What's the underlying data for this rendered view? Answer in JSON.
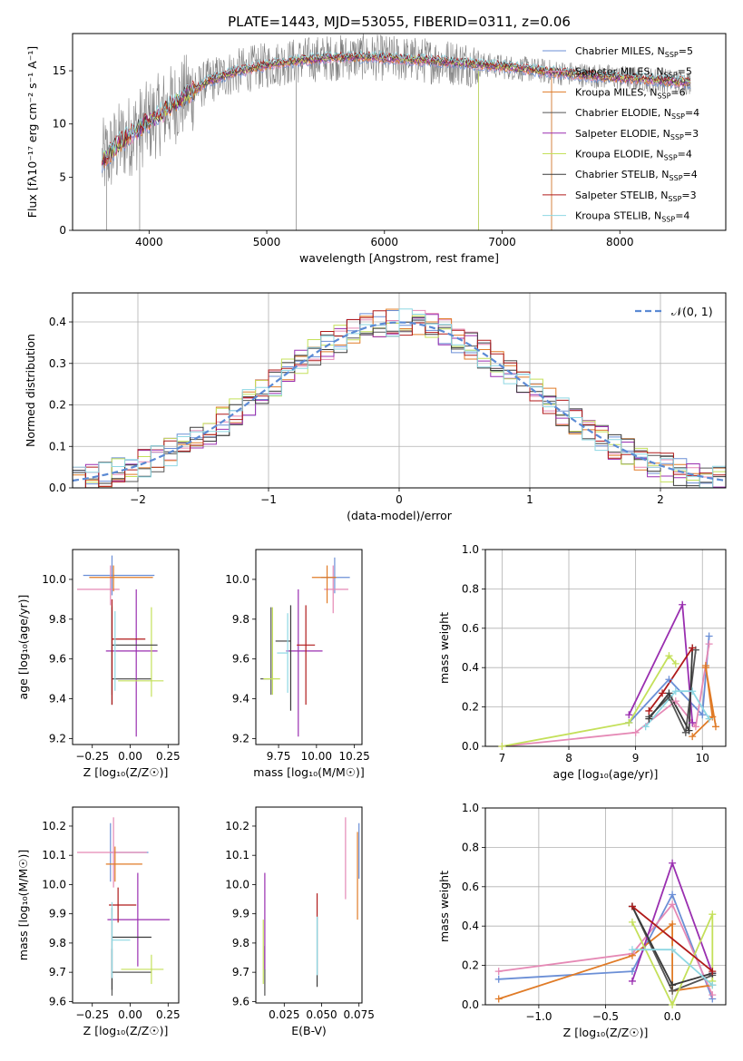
{
  "title": "PLATE=1443, MJD=53055, FIBERID=0311, z=0.06",
  "colors": {
    "data": "#808080",
    "Chabrier MILES": "#6b8fd6",
    "Salpeter MILES": "#e589b5",
    "Kroupa MILES": "#e07b27",
    "Chabrier ELODIE": "#555555",
    "Salpeter ELODIE": "#9a2fb0",
    "Kroupa ELODIE": "#c4e05a",
    "Chabrier STELIB": "#3a3a3a",
    "Salpeter STELIB": "#b01a1a",
    "Kroupa STELIB": "#8ed7e3",
    "normal": "#5b8ad4"
  },
  "chart_data": [
    {
      "id": "spectrum",
      "type": "line",
      "xlabel": "wavelength [Angstrom, rest frame]",
      "ylabel": "Flux [fλ10⁻¹⁷ erg cm⁻² s⁻¹ A⁻¹]",
      "xlim": [
        3350,
        8900
      ],
      "ylim": [
        0,
        18.5
      ],
      "xticks": [
        4000,
        5000,
        6000,
        7000,
        8000
      ],
      "yticks": [
        0,
        5,
        10,
        15
      ],
      "legend_position": "top-right",
      "legend": [
        {
          "name": "Chabrier MILES",
          "nssp": "5"
        },
        {
          "name": "Salpeter MILES",
          "nssp": "5"
        },
        {
          "name": "Kroupa MILES",
          "nssp": "6"
        },
        {
          "name": "Chabrier ELODIE",
          "nssp": "4"
        },
        {
          "name": "Salpeter ELODIE",
          "nssp": "3"
        },
        {
          "name": "Kroupa ELODIE",
          "nssp": "4"
        },
        {
          "name": "Chabrier STELIB",
          "nssp": "4"
        },
        {
          "name": "Salpeter STELIB",
          "nssp": "3"
        },
        {
          "name": "Kroupa STELIB",
          "nssp": "4"
        }
      ],
      "continuum": {
        "x": [
          3600,
          3750,
          3900,
          4000,
          4100,
          4300,
          4500,
          4700,
          4900,
          5100,
          5300,
          5500,
          5800,
          6000,
          6300,
          6600,
          7000,
          7400,
          7800,
          8200,
          8600
        ],
        "y": [
          6.5,
          8.2,
          9.5,
          10.2,
          11.0,
          12.6,
          14.0,
          14.8,
          15.3,
          15.7,
          16.0,
          16.2,
          16.3,
          16.2,
          16.0,
          15.8,
          15.4,
          14.9,
          14.5,
          14.2,
          13.9
        ]
      }
    },
    {
      "id": "residuals",
      "type": "histogram",
      "xlabel": "(data-model)/error",
      "ylabel": "Normed distribution",
      "xlim": [
        -2.5,
        2.5
      ],
      "ylim": [
        0,
        0.47
      ],
      "xticks": [
        -2,
        -1,
        0,
        1,
        2
      ],
      "yticks": [
        0.0,
        0.1,
        0.2,
        0.3,
        0.4
      ],
      "legend_position": "top-right",
      "legend_label": "𝒩(0, 1)",
      "bin_width": 0.1
    },
    {
      "id": "age-vs-Z",
      "type": "errorbar",
      "xlabel": "Z [log₁₀(Z/Z☉)]",
      "ylabel": "age  [log₁₀(age/yr)]",
      "xlim": [
        -0.38,
        0.32
      ],
      "ylim": [
        9.17,
        10.15
      ],
      "xticks": [
        -0.25,
        0.0,
        0.25
      ],
      "xtick_labels": [
        "−0.25",
        "0.00",
        "0.25"
      ],
      "yticks": [
        9.2,
        9.4,
        9.6,
        9.8,
        10.0
      ],
      "points": [
        {
          "model": "Chabrier MILES",
          "x": -0.12,
          "xerr": [
            0.19,
            0.28
          ],
          "y": 10.02,
          "yerr": [
            0.1,
            0.1
          ]
        },
        {
          "model": "Salpeter MILES",
          "x": -0.13,
          "xerr": [
            0.22,
            0.06
          ],
          "y": 9.95,
          "yerr": [
            0.08,
            0.12
          ]
        },
        {
          "model": "Kroupa MILES",
          "x": -0.11,
          "xerr": [
            0.16,
            0.26
          ],
          "y": 10.01,
          "yerr": [
            0.07,
            0.06
          ]
        },
        {
          "model": "Chabrier ELODIE",
          "x": -0.12,
          "xerr": [
            0.0,
            0.26
          ],
          "y": 9.5,
          "yerr": [
            0.08,
            0.36
          ]
        },
        {
          "model": "Salpeter ELODIE",
          "x": 0.04,
          "xerr": [
            0.2,
            0.14
          ],
          "y": 9.64,
          "yerr": [
            0.43,
            0.31
          ]
        },
        {
          "model": "Kroupa ELODIE",
          "x": 0.14,
          "xerr": [
            0.22,
            0.08
          ],
          "y": 9.49,
          "yerr": [
            0.08,
            0.37
          ]
        },
        {
          "model": "Chabrier STELIB",
          "x": -0.12,
          "xerr": [
            0.0,
            0.3
          ],
          "y": 9.67,
          "yerr": [
            0.3,
            0.2
          ]
        },
        {
          "model": "Salpeter STELIB",
          "x": -0.12,
          "xerr": [
            0.0,
            0.22
          ],
          "y": 9.7,
          "yerr": [
            0.33,
            0.2
          ]
        },
        {
          "model": "Kroupa STELIB",
          "x": -0.1,
          "xerr": [
            0.0,
            0.0
          ],
          "y": 9.66,
          "yerr": [
            0.22,
            0.18
          ]
        }
      ]
    },
    {
      "id": "age-vs-mass",
      "type": "errorbar",
      "xlabel": "mass [log₁₀(M/M☉)]",
      "xlim": [
        9.6,
        10.3
      ],
      "ylim": [
        9.17,
        10.15
      ],
      "xticks": [
        9.75,
        10.0,
        10.25
      ],
      "xtick_labels": [
        "9.75",
        "10.00",
        "10.25"
      ],
      "yticks": [
        9.2,
        9.4,
        9.6,
        9.8,
        10.0
      ],
      "points": [
        {
          "model": "Chabrier MILES",
          "x": 10.12,
          "xerr": [
            0.09,
            0.1
          ],
          "y": 10.01,
          "yerr": [
            0.08,
            0.1
          ]
        },
        {
          "model": "Salpeter MILES",
          "x": 10.11,
          "xerr": [
            0.06,
            0.1
          ],
          "y": 9.95,
          "yerr": [
            0.12,
            0.12
          ]
        },
        {
          "model": "Kroupa MILES",
          "x": 10.07,
          "xerr": [
            0.1,
            0.06
          ],
          "y": 10.01,
          "yerr": [
            0.13,
            0.06
          ]
        },
        {
          "model": "Chabrier ELODIE",
          "x": 9.7,
          "xerr": [
            0.07,
            0.0
          ],
          "y": 9.5,
          "yerr": [
            0.08,
            0.36
          ]
        },
        {
          "model": "Salpeter ELODIE",
          "x": 9.88,
          "xerr": [
            0.08,
            0.16
          ],
          "y": 9.64,
          "yerr": [
            0.43,
            0.31
          ]
        },
        {
          "model": "Kroupa ELODIE",
          "x": 9.71,
          "xerr": [
            0.06,
            0.05
          ],
          "y": 9.5,
          "yerr": [
            0.08,
            0.36
          ]
        },
        {
          "model": "Chabrier STELIB",
          "x": 9.83,
          "xerr": [
            0.1,
            0.0
          ],
          "y": 9.69,
          "yerr": [
            0.35,
            0.18
          ]
        },
        {
          "model": "Salpeter STELIB",
          "x": 9.93,
          "xerr": [
            0.06,
            0.06
          ],
          "y": 9.67,
          "yerr": [
            0.3,
            0.2
          ]
        },
        {
          "model": "Kroupa STELIB",
          "x": 9.81,
          "xerr": [
            0.07,
            0.0
          ],
          "y": 9.63,
          "yerr": [
            0.2,
            0.2
          ]
        }
      ]
    },
    {
      "id": "mass-weight-vs-age",
      "type": "line",
      "xlabel": "age  [log₁₀(age/yr)]",
      "ylabel": "mass weight",
      "xlim": [
        6.75,
        10.35
      ],
      "ylim": [
        0,
        1.0
      ],
      "xticks": [
        7,
        8,
        9,
        10
      ],
      "yticks": [
        0.0,
        0.2,
        0.4,
        0.6,
        0.8,
        1.0
      ],
      "series": [
        {
          "model": "Chabrier MILES",
          "x": [
            8.9,
            9.5,
            10.0,
            10.1
          ],
          "y": [
            0.12,
            0.34,
            0.16,
            0.56
          ]
        },
        {
          "model": "Salpeter MILES",
          "x": [
            7.0,
            9.0,
            9.6,
            9.9,
            10.1
          ],
          "y": [
            0.0,
            0.07,
            0.23,
            0.1,
            0.52
          ]
        },
        {
          "model": "Kroupa MILES",
          "x": [
            9.85,
            10.15,
            10.05,
            10.05,
            10.2
          ],
          "y": [
            0.05,
            0.15,
            0.41,
            0.4,
            0.1
          ]
        },
        {
          "model": "Chabrier ELODIE",
          "x": [
            9.2,
            9.5,
            9.75,
            9.9
          ],
          "y": [
            0.15,
            0.25,
            0.07,
            0.49
          ]
        },
        {
          "model": "Salpeter ELODIE",
          "x": [
            8.9,
            9.7,
            9.85
          ],
          "y": [
            0.16,
            0.72,
            0.12
          ]
        },
        {
          "model": "Kroupa ELODIE",
          "x": [
            7.0,
            8.9,
            9.5,
            9.6
          ],
          "y": [
            0.0,
            0.12,
            0.46,
            0.42
          ]
        },
        {
          "model": "Chabrier STELIB",
          "x": [
            9.2,
            9.5,
            9.8,
            9.85
          ],
          "y": [
            0.14,
            0.27,
            0.08,
            0.5
          ]
        },
        {
          "model": "Salpeter STELIB",
          "x": [
            9.2,
            9.4,
            9.85
          ],
          "y": [
            0.18,
            0.27,
            0.5
          ]
        },
        {
          "model": "Kroupa STELIB",
          "x": [
            9.15,
            9.6,
            9.85,
            10.1
          ],
          "y": [
            0.1,
            0.28,
            0.28,
            0.14
          ]
        }
      ]
    },
    {
      "id": "mass-vs-Z",
      "type": "errorbar",
      "xlabel": "Z [log₁₀(Z/Z☉)]",
      "ylabel": "mass [log₁₀(M/M☉)]",
      "xlim": [
        -0.38,
        0.32
      ],
      "ylim": [
        9.595,
        10.265
      ],
      "xticks": [
        -0.25,
        0.0,
        0.25
      ],
      "xtick_labels": [
        "−0.25",
        "0.00",
        "0.25"
      ],
      "yticks": [
        9.6,
        9.7,
        9.8,
        9.9,
        10.0,
        10.1,
        10.2
      ],
      "points": [
        {
          "model": "Chabrier MILES",
          "x": -0.13,
          "xerr": [
            0.0,
            0.25
          ],
          "y": 10.11,
          "yerr": [
            0.1,
            0.1
          ]
        },
        {
          "model": "Salpeter MILES",
          "x": -0.11,
          "xerr": [
            0.24,
            0.22
          ],
          "y": 10.11,
          "yerr": [
            0.12,
            0.12
          ]
        },
        {
          "model": "Kroupa MILES",
          "x": -0.1,
          "xerr": [
            0.06,
            0.18
          ],
          "y": 10.07,
          "yerr": [
            0.06,
            0.06
          ]
        },
        {
          "model": "Chabrier ELODIE",
          "x": -0.12,
          "xerr": [
            0.0,
            0.26
          ],
          "y": 9.7,
          "yerr": [
            0.08,
            0.08
          ]
        },
        {
          "model": "Salpeter ELODIE",
          "x": 0.05,
          "xerr": [
            0.2,
            0.21
          ],
          "y": 9.88,
          "yerr": [
            0.16,
            0.16
          ]
        },
        {
          "model": "Kroupa ELODIE",
          "x": 0.14,
          "xerr": [
            0.2,
            0.08
          ],
          "y": 9.71,
          "yerr": [
            0.05,
            0.05
          ]
        },
        {
          "model": "Chabrier STELIB",
          "x": -0.12,
          "xerr": [
            0.0,
            0.26
          ],
          "y": 9.82,
          "yerr": [
            0.18,
            0.1
          ]
        },
        {
          "model": "Salpeter STELIB",
          "x": -0.08,
          "xerr": [
            0.06,
            0.12
          ],
          "y": 9.93,
          "yerr": [
            0.06,
            0.06
          ]
        },
        {
          "model": "Kroupa STELIB",
          "x": -0.12,
          "xerr": [
            0.0,
            0.12
          ],
          "y": 9.81,
          "yerr": [
            0.13,
            0.13
          ]
        }
      ]
    },
    {
      "id": "mass-vs-ebv",
      "type": "errorbar",
      "xlabel": "E(B-V)",
      "xlim": [
        0.006,
        0.077
      ],
      "ylim": [
        9.595,
        10.265
      ],
      "xticks": [
        0.025,
        0.05,
        0.075
      ],
      "xtick_labels": [
        "0.025",
        "0.050",
        "0.075"
      ],
      "yticks": [
        9.6,
        9.7,
        9.8,
        9.9,
        10.0,
        10.1,
        10.2
      ],
      "points": [
        {
          "model": "Salpeter MILES",
          "x": 0.066,
          "xerr": [
            0,
            0
          ],
          "y": 10.11,
          "yerr": [
            0.16,
            0.12
          ]
        },
        {
          "model": "Kroupa MILES",
          "x": 0.074,
          "xerr": [
            0,
            0
          ],
          "y": 10.07,
          "yerr": [
            0.19,
            0.11
          ]
        },
        {
          "model": "Chabrier MILES",
          "x": 0.075,
          "xerr": [
            0,
            0
          ],
          "y": 10.12,
          "yerr": [
            0.1,
            0.09
          ]
        },
        {
          "model": "Chabrier ELODIE",
          "x": 0.012,
          "xerr": [
            0,
            0
          ],
          "y": 9.7,
          "yerr": [
            0.08,
            0.09
          ]
        },
        {
          "model": "Salpeter ELODIE",
          "x": 0.012,
          "xerr": [
            0,
            0
          ],
          "y": 9.88,
          "yerr": [
            0.17,
            0.16
          ]
        },
        {
          "model": "Kroupa ELODIE",
          "x": 0.011,
          "xerr": [
            0,
            0
          ],
          "y": 9.72,
          "yerr": [
            0.06,
            0.16
          ]
        },
        {
          "model": "Chabrier STELIB",
          "x": 0.047,
          "xerr": [
            0,
            0
          ],
          "y": 9.8,
          "yerr": [
            0.15,
            0.09
          ]
        },
        {
          "model": "Salpeter STELIB",
          "x": 0.047,
          "xerr": [
            0,
            0
          ],
          "y": 9.93,
          "yerr": [
            0.04,
            0.04
          ]
        },
        {
          "model": "Kroupa STELIB",
          "x": 0.047,
          "xerr": [
            0,
            0
          ],
          "y": 9.81,
          "yerr": [
            0.12,
            0.08
          ]
        }
      ]
    },
    {
      "id": "mass-weight-vs-Z",
      "type": "line",
      "xlabel": "Z [log₁₀(Z/Z☉)]",
      "ylabel": "mass weight",
      "xlim": [
        -1.4,
        0.4
      ],
      "ylim": [
        0,
        1.0
      ],
      "xticks": [
        -1.0,
        -0.5,
        0.0
      ],
      "xtick_labels": [
        "−1.0",
        "−0.5",
        "0.0"
      ],
      "yticks": [
        0.0,
        0.2,
        0.4,
        0.6,
        0.8,
        1.0
      ],
      "series": [
        {
          "model": "Chabrier MILES",
          "x": [
            -1.3,
            -0.3,
            0.0,
            0.3
          ],
          "y": [
            0.13,
            0.17,
            0.56,
            0.03
          ]
        },
        {
          "model": "Salpeter MILES",
          "x": [
            -1.3,
            -0.3,
            0.0,
            0.3
          ],
          "y": [
            0.17,
            0.26,
            0.51,
            0.05
          ]
        },
        {
          "model": "Kroupa MILES",
          "x": [
            -1.3,
            -0.3,
            0.0,
            0.0,
            0.3
          ],
          "y": [
            0.03,
            0.25,
            0.41,
            0.07,
            0.1
          ]
        },
        {
          "model": "Chabrier ELODIE",
          "x": [
            -0.3,
            0.0,
            0.3
          ],
          "y": [
            0.5,
            0.07,
            0.15
          ]
        },
        {
          "model": "Salpeter ELODIE",
          "x": [
            -0.3,
            0.0,
            0.3
          ],
          "y": [
            0.12,
            0.72,
            0.16
          ]
        },
        {
          "model": "Kroupa ELODIE",
          "x": [
            -0.3,
            0.0,
            0.3,
            0.3
          ],
          "y": [
            0.42,
            0.0,
            0.46,
            0.12
          ]
        },
        {
          "model": "Chabrier STELIB",
          "x": [
            -0.3,
            0.0,
            0.3
          ],
          "y": [
            0.5,
            0.1,
            0.16
          ]
        },
        {
          "model": "Salpeter STELIB",
          "x": [
            -0.3,
            0.3
          ],
          "y": [
            0.5,
            0.17
          ]
        },
        {
          "model": "Kroupa STELIB",
          "x": [
            -0.3,
            0.0,
            0.3
          ],
          "y": [
            0.28,
            0.28,
            0.1
          ]
        }
      ]
    }
  ]
}
